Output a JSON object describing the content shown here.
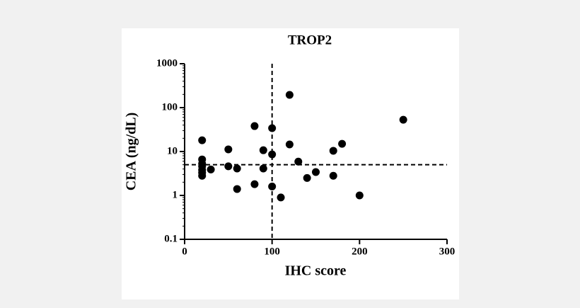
{
  "chart_data": {
    "type": "scatter",
    "title": "TROP2",
    "x_label": "IHC score",
    "y_label": "CEA (ng/dL)",
    "x": [
      20,
      20,
      20,
      20,
      20,
      20,
      20,
      30,
      50,
      50,
      60,
      60,
      80,
      80,
      90,
      90,
      100,
      100,
      100,
      110,
      120,
      120,
      130,
      140,
      150,
      170,
      170,
      180,
      200,
      250
    ],
    "values": [
      18,
      6.6,
      5.3,
      4.6,
      3.8,
      3.3,
      2.8,
      3.9,
      11.2,
      4.6,
      4.1,
      1.4,
      38,
      1.8,
      10.7,
      4.1,
      34,
      8.6,
      1.6,
      0.9,
      195,
      14.5,
      5.9,
      2.5,
      3.4,
      10.4,
      2.8,
      15,
      1,
      53
    ],
    "color": "#000000",
    "xlim": [
      0,
      300
    ],
    "xticks": [
      0,
      100,
      200,
      300
    ],
    "ylim": [
      0.1,
      1000
    ],
    "yticks": [
      0.1,
      1,
      10,
      100,
      1000
    ],
    "y_log": true,
    "vlines": [
      100
    ],
    "hlines": [
      5
    ]
  }
}
